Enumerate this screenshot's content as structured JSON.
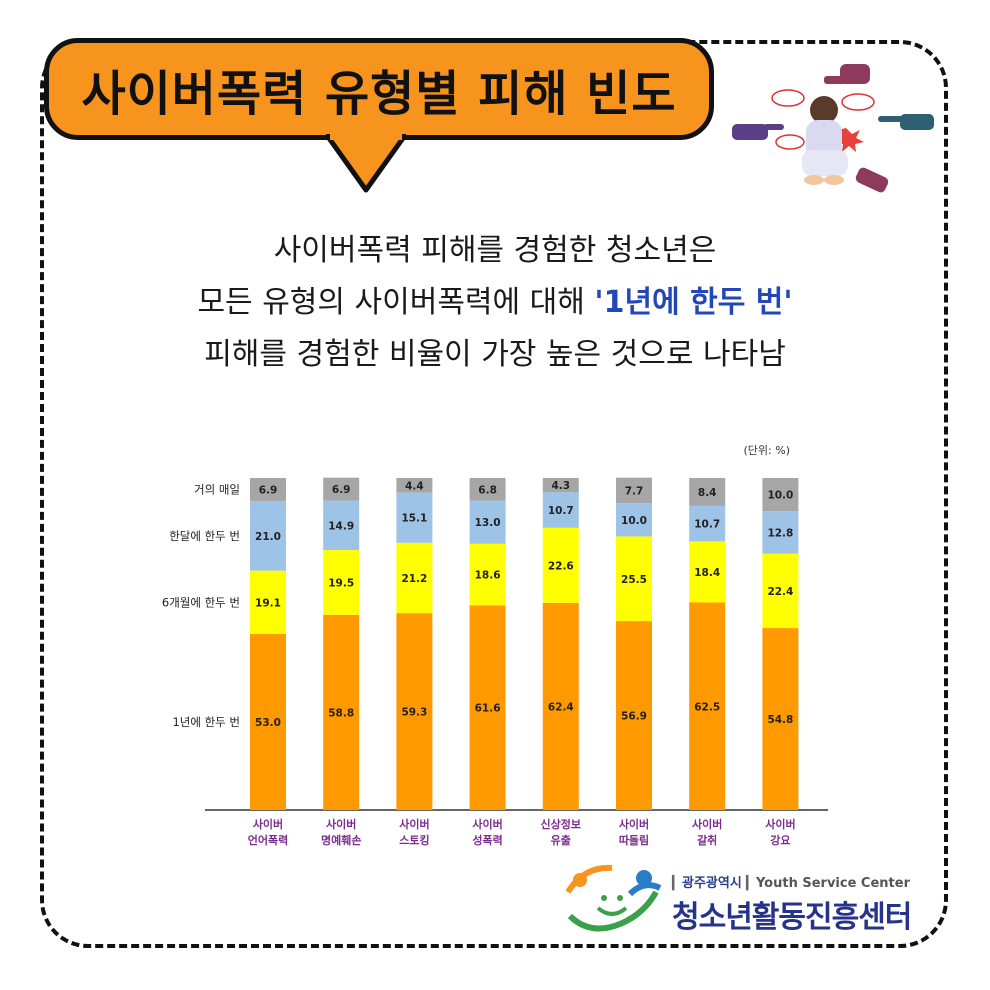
{
  "title": "사이버폭력 유형별 피해 빈도",
  "headline": {
    "line1": "사이버폭력 피해를 경험한 청소년은",
    "line2_prefix": "모든 유형의 사이버폭력에 대해 ",
    "line2_highlight": "'1년에 한두 번'",
    "line3": "피해를 경험한 비율이 가장 높은 것으로 나타남"
  },
  "colors": {
    "accent": "#f7941d",
    "highlight": "#2447b8",
    "category_label": "#7b2d8e"
  },
  "chart_data": {
    "type": "bar",
    "stacked": true,
    "unit_label": "(단위: %)",
    "categories": [
      [
        "사이버",
        "언어폭력"
      ],
      [
        "사이버",
        "명예훼손"
      ],
      [
        "사이버",
        "스토킹"
      ],
      [
        "사이버",
        "성폭력"
      ],
      [
        "신상정보",
        "유출"
      ],
      [
        "사이버",
        "따돌림"
      ],
      [
        "사이버",
        "갈취"
      ],
      [
        "사이버",
        "강요"
      ]
    ],
    "series": [
      {
        "name": "1년에 한두 번",
        "color": "#ff9900",
        "values": [
          53.0,
          58.8,
          59.3,
          61.6,
          62.4,
          56.9,
          62.5,
          54.8
        ]
      },
      {
        "name": "6개월에 한두 번",
        "color": "#ffff00",
        "values": [
          19.1,
          19.5,
          21.2,
          18.6,
          22.6,
          25.5,
          18.4,
          22.4
        ]
      },
      {
        "name": "한달에 한두 번",
        "color": "#9dc3e6",
        "values": [
          21.0,
          14.9,
          15.1,
          13.0,
          10.7,
          10.0,
          10.7,
          12.8
        ]
      },
      {
        "name": "거의 매일",
        "color": "#a6a6a6",
        "values": [
          6.9,
          6.9,
          4.4,
          6.8,
          4.3,
          7.7,
          8.4,
          10.0
        ]
      }
    ],
    "ylim": [
      0,
      100
    ]
  },
  "logo": {
    "city": "광주광역시",
    "english": "Youth Service Center",
    "name": "청소년활동진흥센터"
  }
}
